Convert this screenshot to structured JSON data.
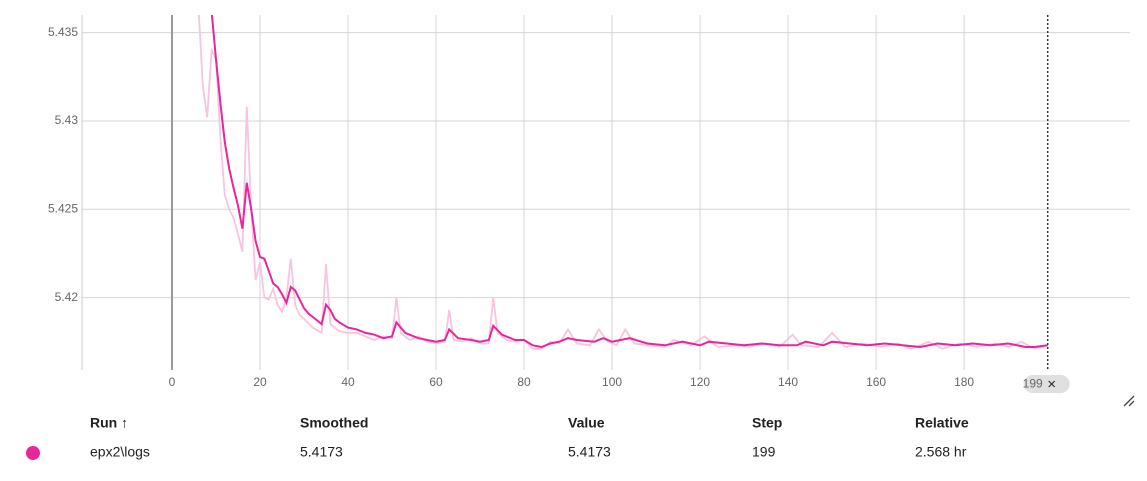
{
  "chart_data": {
    "type": "line",
    "xlim": [
      -20.45,
      217.7
    ],
    "ylim": [
      5.4159,
      5.436
    ],
    "xticks": [
      0,
      20,
      40,
      60,
      80,
      100,
      120,
      140,
      160,
      180
    ],
    "yticks": [
      5.42,
      5.425,
      5.43,
      5.435
    ],
    "grid": true,
    "cursor_x": 199,
    "series": [
      {
        "color": "#f8c4df",
        "x": [
          6,
          7,
          8,
          9,
          10,
          11,
          12,
          13,
          14,
          15,
          16,
          17,
          18,
          19,
          20,
          21,
          22,
          23,
          24,
          25,
          26,
          27,
          28,
          29,
          30,
          32,
          34,
          35,
          36,
          38,
          40,
          42,
          44,
          46,
          48,
          50,
          51,
          52,
          54,
          56,
          58,
          60,
          62,
          63,
          64,
          66,
          68,
          70,
          72,
          73,
          74,
          76,
          78,
          80,
          82,
          84,
          86,
          88,
          90,
          92,
          95,
          97,
          99,
          101,
          103,
          105,
          108,
          112,
          114,
          118,
          121,
          124,
          128,
          131,
          135,
          138,
          141,
          143,
          147,
          150,
          153,
          157,
          161,
          165,
          168,
          172,
          175,
          179,
          183,
          187,
          190,
          193,
          196,
          199
        ],
        "values": [
          5.4365,
          5.432,
          5.4302,
          5.434,
          5.4335,
          5.429,
          5.4258,
          5.425,
          5.4245,
          5.4236,
          5.4226,
          5.4308,
          5.425,
          5.421,
          5.422,
          5.42,
          5.4199,
          5.4205,
          5.4196,
          5.4192,
          5.42,
          5.4222,
          5.4196,
          5.419,
          5.4188,
          5.4183,
          5.418,
          5.4219,
          5.4185,
          5.4181,
          5.418,
          5.418,
          5.4178,
          5.4176,
          5.4178,
          5.4177,
          5.42,
          5.418,
          5.4176,
          5.4178,
          5.4175,
          5.4174,
          5.4175,
          5.4193,
          5.4176,
          5.4175,
          5.4177,
          5.4174,
          5.4174,
          5.42,
          5.418,
          5.4176,
          5.4175,
          5.4176,
          5.4171,
          5.4171,
          5.4175,
          5.4174,
          5.4182,
          5.4174,
          5.4173,
          5.4182,
          5.4175,
          5.4173,
          5.4182,
          5.4174,
          5.4173,
          5.4172,
          5.4176,
          5.4173,
          5.4178,
          5.4172,
          5.4173,
          5.4172,
          5.4174,
          5.4172,
          5.4179,
          5.4173,
          5.4172,
          5.418,
          5.4172,
          5.4174,
          5.4172,
          5.4174,
          5.4171,
          5.4175,
          5.4171,
          5.4174,
          5.4172,
          5.4174,
          5.4172,
          5.4175,
          5.4171,
          5.4173
        ]
      },
      {
        "color": "#e8259a",
        "x": [
          9,
          10,
          11,
          12,
          13,
          14,
          15,
          16,
          17,
          18,
          19,
          20,
          21,
          22,
          23,
          24,
          25,
          26,
          27,
          28,
          29,
          30,
          31,
          32,
          33,
          34,
          35,
          36,
          37,
          38,
          40,
          42,
          44,
          46,
          48,
          50,
          51,
          53,
          56,
          58,
          60,
          62,
          63,
          65,
          68,
          70,
          72,
          73,
          75,
          78,
          80,
          82,
          84,
          86,
          88,
          90,
          92,
          96,
          98,
          100,
          104,
          108,
          112,
          116,
          120,
          122,
          126,
          130,
          134,
          138,
          142,
          144,
          148,
          150,
          154,
          158,
          162,
          166,
          170,
          174,
          178,
          182,
          186,
          190,
          194,
          196,
          199
        ],
        "values": [
          5.4362,
          5.4335,
          5.431,
          5.4288,
          5.4273,
          5.4262,
          5.4252,
          5.4239,
          5.4265,
          5.425,
          5.4232,
          5.4223,
          5.4222,
          5.4215,
          5.4208,
          5.4206,
          5.4202,
          5.4197,
          5.4206,
          5.4204,
          5.4199,
          5.4194,
          5.4191,
          5.4189,
          5.4187,
          5.4185,
          5.4196,
          5.4193,
          5.4188,
          5.4186,
          5.4183,
          5.4182,
          5.418,
          5.4179,
          5.4177,
          5.4178,
          5.4186,
          5.418,
          5.4177,
          5.4176,
          5.4175,
          5.4176,
          5.4182,
          5.4177,
          5.4176,
          5.4175,
          5.4176,
          5.4184,
          5.4179,
          5.4176,
          5.4176,
          5.4173,
          5.4172,
          5.4174,
          5.4175,
          5.4177,
          5.4176,
          5.4175,
          5.4177,
          5.4175,
          5.4177,
          5.4174,
          5.4173,
          5.4175,
          5.4173,
          5.4175,
          5.4174,
          5.4173,
          5.4174,
          5.4173,
          5.4173,
          5.4175,
          5.4173,
          5.4175,
          5.4174,
          5.4173,
          5.4174,
          5.4173,
          5.4172,
          5.4174,
          5.4173,
          5.4174,
          5.4173,
          5.4174,
          5.4172,
          5.4172,
          5.4173
        ]
      }
    ]
  },
  "table": {
    "headers": [
      "Run ↑",
      "Smoothed",
      "Value",
      "Step",
      "Relative"
    ],
    "rows": [
      [
        "epx2\\logs",
        "5.4173",
        "5.4173",
        "199",
        "2.568 hr"
      ]
    ],
    "run_color": "#e8259a"
  }
}
